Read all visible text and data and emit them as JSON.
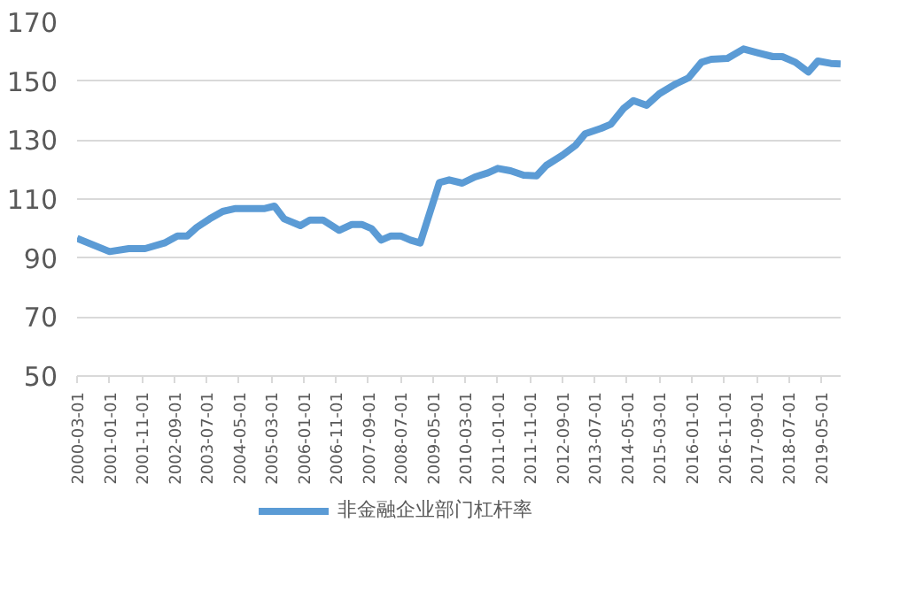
{
  "chart_data": {
    "type": "line",
    "x": [
      "2000-03",
      "2001-01",
      "2001-07",
      "2001-12",
      "2002-06",
      "2002-10",
      "2003-01",
      "2003-04",
      "2003-08",
      "2003-12",
      "2004-04",
      "2004-09",
      "2005-01",
      "2005-04",
      "2005-07",
      "2005-12",
      "2006-03",
      "2006-07",
      "2006-12",
      "2007-04",
      "2007-07",
      "2007-10",
      "2008-01",
      "2008-04",
      "2008-07",
      "2008-10",
      "2009-01",
      "2009-07",
      "2009-10",
      "2010-02",
      "2010-06",
      "2010-10",
      "2011-01",
      "2011-05",
      "2011-09",
      "2012-01",
      "2012-04",
      "2012-09",
      "2013-01",
      "2013-04",
      "2013-09",
      "2013-12",
      "2014-04",
      "2014-07",
      "2014-11",
      "2015-03",
      "2015-08",
      "2015-12",
      "2016-04",
      "2016-07",
      "2016-12",
      "2017-05",
      "2017-09",
      "2018-02",
      "2018-05",
      "2018-09",
      "2019-01",
      "2019-04",
      "2019-08",
      "2019-11"
    ],
    "series": [
      {
        "name": "非金融企业部门杠杆率",
        "color": "#5b9bd5",
        "values": [
          96.7,
          92.2,
          93.2,
          93.2,
          95.1,
          97.5,
          97.5,
          100.4,
          103.3,
          105.8,
          106.8,
          106.8,
          106.8,
          107.6,
          103.3,
          101.0,
          102.9,
          102.9,
          99.4,
          101.4,
          101.4,
          100.0,
          96.1,
          97.5,
          97.5,
          96.1,
          95.1,
          115.6,
          116.5,
          115.4,
          117.5,
          118.9,
          120.4,
          119.6,
          118.1,
          117.9,
          121.4,
          124.9,
          128.2,
          132.1,
          134.0,
          135.4,
          140.8,
          143.4,
          141.8,
          145.7,
          149.0,
          151.1,
          156.4,
          157.4,
          157.7,
          160.9,
          159.7,
          158.3,
          158.3,
          156.4,
          153.1,
          156.8,
          156.0,
          155.8
        ]
      }
    ],
    "xlim": [
      "2000-03-01",
      "2019-11-01"
    ],
    "xticks": [
      "2000-03-01",
      "2001-01-01",
      "2001-11-01",
      "2002-09-01",
      "2003-07-01",
      "2004-05-01",
      "2005-03-01",
      "2006-01-01",
      "2006-11-01",
      "2007-09-01",
      "2008-07-01",
      "2009-05-01",
      "2010-03-01",
      "2011-01-01",
      "2011-11-01",
      "2012-09-01",
      "2013-07-01",
      "2014-05-01",
      "2015-03-01",
      "2016-01-01",
      "2016-11-01",
      "2017-09-01",
      "2018-07-01",
      "2019-05-01"
    ],
    "ylim": [
      50,
      170
    ],
    "yticks": [
      50,
      70,
      90,
      110,
      130,
      150,
      170
    ],
    "grid": "y",
    "legend": "bottom",
    "line_style": "solid",
    "marker": "none"
  }
}
